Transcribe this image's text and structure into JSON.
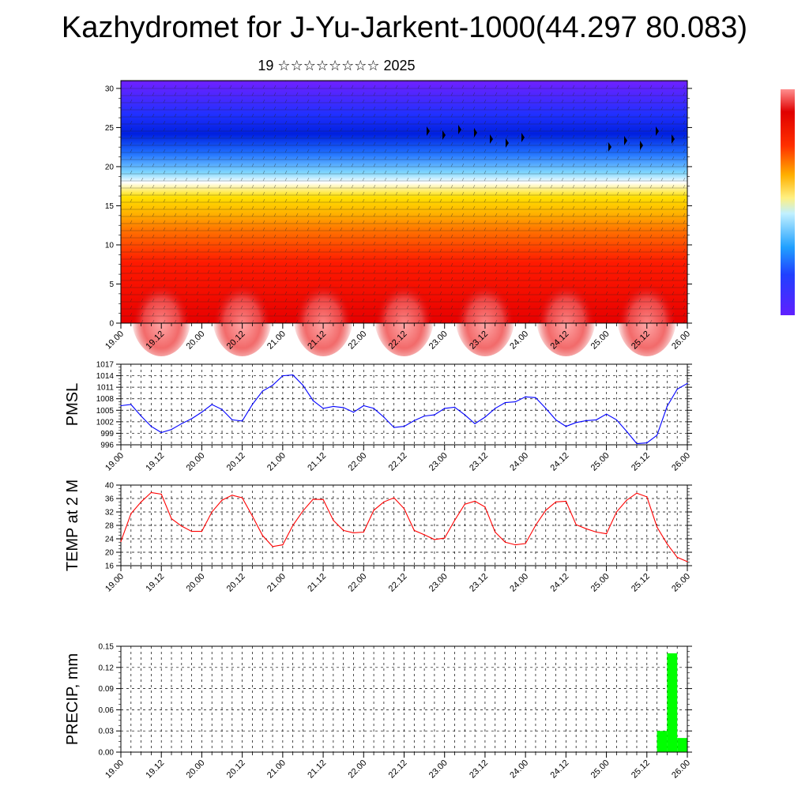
{
  "title": "Kazhydromet for J-Yu-Jarkent-1000(44.297 80.083)",
  "subtitle": "19 ☆☆☆☆☆☆☆☆ 2025",
  "colors": {
    "pmsl": "#0000ff",
    "temp": "#ff0000",
    "precip": "#00ff00"
  },
  "chart_data": [
    {
      "type": "heatmap",
      "name": "vertical-cross-section",
      "x_ticks": [
        "19.00",
        "19.12",
        "20.00",
        "20.12",
        "21.00",
        "21.12",
        "22.00",
        "22.12",
        "23.00",
        "23.12",
        "24.00",
        "24.12",
        "25.00",
        "25.12",
        "26.00"
      ],
      "y_ticks": [
        "0",
        "5",
        "10",
        "15",
        "20",
        "25",
        "30"
      ],
      "ylim": [
        0,
        31
      ],
      "colormap": [
        "#6000ff",
        "#0040ff",
        "#40c0ff",
        "#ffffff",
        "#ffd000",
        "#ff8000",
        "#ff2000",
        "#e00000"
      ],
      "overlay": "wind barbs"
    },
    {
      "type": "line",
      "ylabel": "PMSL",
      "y_ticks": [
        "996",
        "999",
        "1002",
        "1005",
        "1008",
        "1011",
        "1014",
        "1017"
      ],
      "ylim": [
        996,
        1017
      ],
      "x_ticks": [
        "19.00",
        "19.12",
        "20.00",
        "20.12",
        "21.00",
        "21.12",
        "22.00",
        "22.12",
        "23.00",
        "23.12",
        "24.00",
        "24.12",
        "25.00",
        "25.12",
        "26.00"
      ],
      "x": [
        0,
        3,
        6,
        9,
        12,
        15,
        18,
        21,
        24,
        27,
        30,
        33,
        36,
        39,
        42,
        45,
        48,
        51,
        54,
        57,
        60,
        63,
        66,
        69,
        72,
        75,
        78,
        81,
        84,
        87,
        90,
        93,
        96,
        99,
        102,
        105,
        108,
        111,
        114,
        117,
        120,
        123,
        126,
        129,
        132,
        135,
        138,
        141,
        144,
        147,
        150,
        153,
        156,
        159,
        162,
        165,
        168
      ],
      "values": [
        1006.2,
        1006.5,
        1003.5,
        1000.8,
        999.2,
        1000.0,
        1001.5,
        1002.8,
        1004.5,
        1006.5,
        1005.2,
        1002.5,
        1002.2,
        1006.5,
        1010.0,
        1011.5,
        1014.0,
        1014.2,
        1011.5,
        1007.5,
        1005.5,
        1006.0,
        1005.7,
        1004.5,
        1006.2,
        1005.5,
        1003.2,
        1000.5,
        1000.8,
        1002.3,
        1003.5,
        1003.8,
        1005.5,
        1005.8,
        1003.8,
        1001.5,
        1003.2,
        1005.5,
        1007.0,
        1007.2,
        1008.5,
        1008.3,
        1005.5,
        1002.5,
        1000.8,
        1001.8,
        1002.3,
        1002.5,
        1004.0,
        1002.5,
        999.5,
        996.3,
        996.5,
        998.5,
        1006.0,
        1010.5,
        1012.0
      ],
      "color": "#0000ff"
    },
    {
      "type": "line",
      "ylabel": "TEMP at 2 M",
      "y_ticks": [
        "16",
        "20",
        "24",
        "28",
        "32",
        "36",
        "40"
      ],
      "ylim": [
        16,
        40
      ],
      "x_ticks": [
        "19.00",
        "19.12",
        "20.00",
        "20.12",
        "21.00",
        "21.12",
        "22.00",
        "22.12",
        "23.00",
        "23.12",
        "24.00",
        "24.12",
        "25.00",
        "25.12",
        "26.00"
      ],
      "x": [
        0,
        3,
        6,
        9,
        12,
        15,
        18,
        21,
        24,
        27,
        30,
        33,
        36,
        39,
        42,
        45,
        48,
        51,
        54,
        57,
        60,
        63,
        66,
        69,
        72,
        75,
        78,
        81,
        84,
        87,
        90,
        93,
        96,
        99,
        102,
        105,
        108,
        111,
        114,
        117,
        120,
        123,
        126,
        129,
        132,
        135,
        138,
        141,
        144,
        147,
        150,
        153,
        156,
        159,
        162,
        165,
        168
      ],
      "values": [
        23.2,
        31.5,
        35.0,
        37.8,
        37.3,
        30.0,
        27.8,
        26.2,
        26.2,
        32.0,
        35.5,
        37.0,
        36.2,
        30.8,
        25.0,
        21.7,
        22.2,
        28.0,
        32.3,
        35.8,
        35.7,
        29.5,
        26.5,
        25.8,
        26.0,
        32.5,
        35.0,
        36.2,
        33.0,
        26.5,
        25.2,
        23.8,
        24.2,
        29.5,
        34.3,
        35.2,
        33.5,
        26.0,
        23.0,
        22.2,
        22.6,
        28.0,
        32.5,
        35.0,
        35.2,
        28.2,
        27.0,
        26.0,
        25.5,
        32.0,
        35.5,
        37.6,
        36.5,
        27.5,
        22.5,
        18.5,
        17.2
      ],
      "color": "#ff0000"
    },
    {
      "type": "bar",
      "ylabel": "PRECIP, mm",
      "y_ticks": [
        "0.00",
        "0.03",
        "0.06",
        "0.09",
        "0.12",
        "0.15"
      ],
      "ylim": [
        0,
        0.15
      ],
      "x_ticks": [
        "19.00",
        "19.12",
        "20.00",
        "20.12",
        "21.00",
        "21.12",
        "22.00",
        "22.12",
        "23.00",
        "23.12",
        "24.00",
        "24.12",
        "25.00",
        "25.12",
        "26.00"
      ],
      "bars": [
        {
          "x0": 159,
          "x1": 162,
          "value": 0.03
        },
        {
          "x0": 162,
          "x1": 165,
          "value": 0.14
        },
        {
          "x0": 165,
          "x1": 168,
          "value": 0.02
        }
      ],
      "color": "#00ff00"
    }
  ]
}
